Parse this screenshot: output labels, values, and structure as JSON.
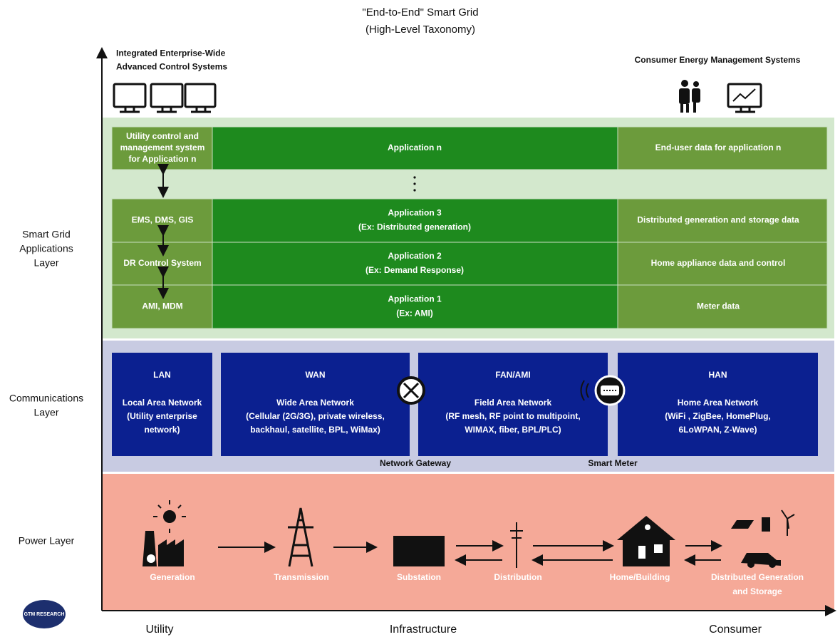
{
  "title": [
    "\"End-to-End\" Smart Grid",
    "(High-Level Taxonomy)"
  ],
  "top_left_label": [
    "Integrated Enterprise-Wide",
    "Advanced Control Systems"
  ],
  "top_right_label": "Consumer Energy Management Systems",
  "layer_labels": {
    "applications": [
      "Smart Grid",
      "Applications",
      "Layer"
    ],
    "communications": [
      "Communications",
      "Layer"
    ],
    "power": "Power Layer"
  },
  "applications": [
    {
      "control": [
        "Utility control and",
        "management system",
        "for Application n"
      ],
      "application": [
        "Application n"
      ],
      "end_user": "End-user data for application n"
    },
    {
      "control": [
        "EMS, DMS, GIS"
      ],
      "application": [
        "Application 3",
        "(Ex: Distributed generation)"
      ],
      "end_user": "Distributed generation and storage data"
    },
    {
      "control": [
        "DR Control System"
      ],
      "application": [
        "Application 2",
        "(Ex: Demand Response)"
      ],
      "end_user": "Home appliance data and control"
    },
    {
      "control": [
        "AMI, MDM"
      ],
      "application": [
        "Application 1",
        "(Ex: AMI)"
      ],
      "end_user": "Meter data"
    }
  ],
  "networks": [
    {
      "name": "LAN",
      "description": [
        "Local Area Network",
        "(Utility enterprise",
        "network)"
      ]
    },
    {
      "name": "WAN",
      "description": [
        "Wide Area Network",
        "(Cellular (2G/3G), private wireless,",
        "backhaul, satellite, BPL, WiMax)"
      ]
    },
    {
      "name": "FAN/AMI",
      "description": [
        "Field Area Network",
        "(RF mesh, RF point to multipoint,",
        "WIMAX, fiber, BPL/PLC)"
      ]
    },
    {
      "name": "HAN",
      "description": [
        "Home Area Network",
        "(WiFi , ZigBee, HomePlug,",
        "6LoWPAN, Z-Wave)"
      ]
    }
  ],
  "network_devices": [
    "Network Gateway",
    "Smart Meter"
  ],
  "power_stages": [
    [
      "Generation"
    ],
    [
      "Transmission"
    ],
    [
      "Substation"
    ],
    [
      "Distribution"
    ],
    [
      "Home/Building"
    ],
    [
      "Distributed Generation",
      "and Storage"
    ]
  ],
  "x_axis_labels": [
    "Utility",
    "Infrastructure",
    "Consumer"
  ],
  "logo": "GTM RESEARCH"
}
